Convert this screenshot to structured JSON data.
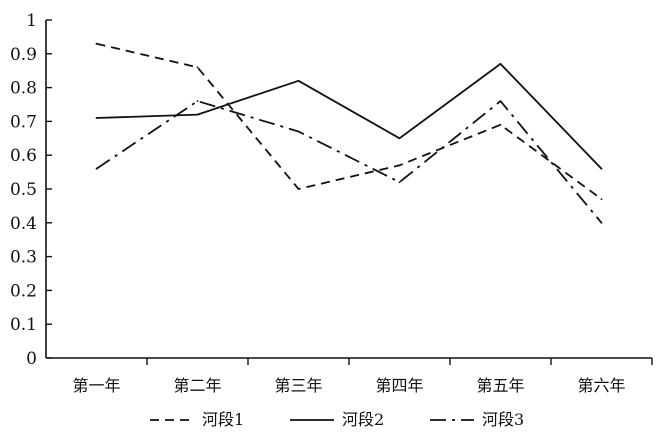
{
  "chart_data": {
    "type": "line",
    "title": "",
    "xlabel": "",
    "ylabel": "",
    "categories": [
      "第一年",
      "第二年",
      "第三年",
      "第四年",
      "第五年",
      "第六年"
    ],
    "ylim": [
      0,
      1
    ],
    "yticks": [
      "0",
      "0.1",
      "0.2",
      "0.3",
      "0.4",
      "0.5",
      "0.6",
      "0.7",
      "0.8",
      "0.9",
      "1"
    ],
    "grid": false,
    "legend_position": "bottom",
    "series": [
      {
        "name": "河段1",
        "style": "dashed",
        "color": "#111111",
        "values": [
          0.93,
          0.86,
          0.5,
          0.57,
          0.69,
          0.47
        ]
      },
      {
        "name": "河段2",
        "style": "solid",
        "color": "#111111",
        "values": [
          0.71,
          0.72,
          0.82,
          0.65,
          0.87,
          0.56
        ]
      },
      {
        "name": "河段3",
        "style": "dash-dot",
        "color": "#111111",
        "values": [
          0.56,
          0.76,
          0.67,
          0.52,
          0.76,
          0.4
        ]
      }
    ]
  }
}
